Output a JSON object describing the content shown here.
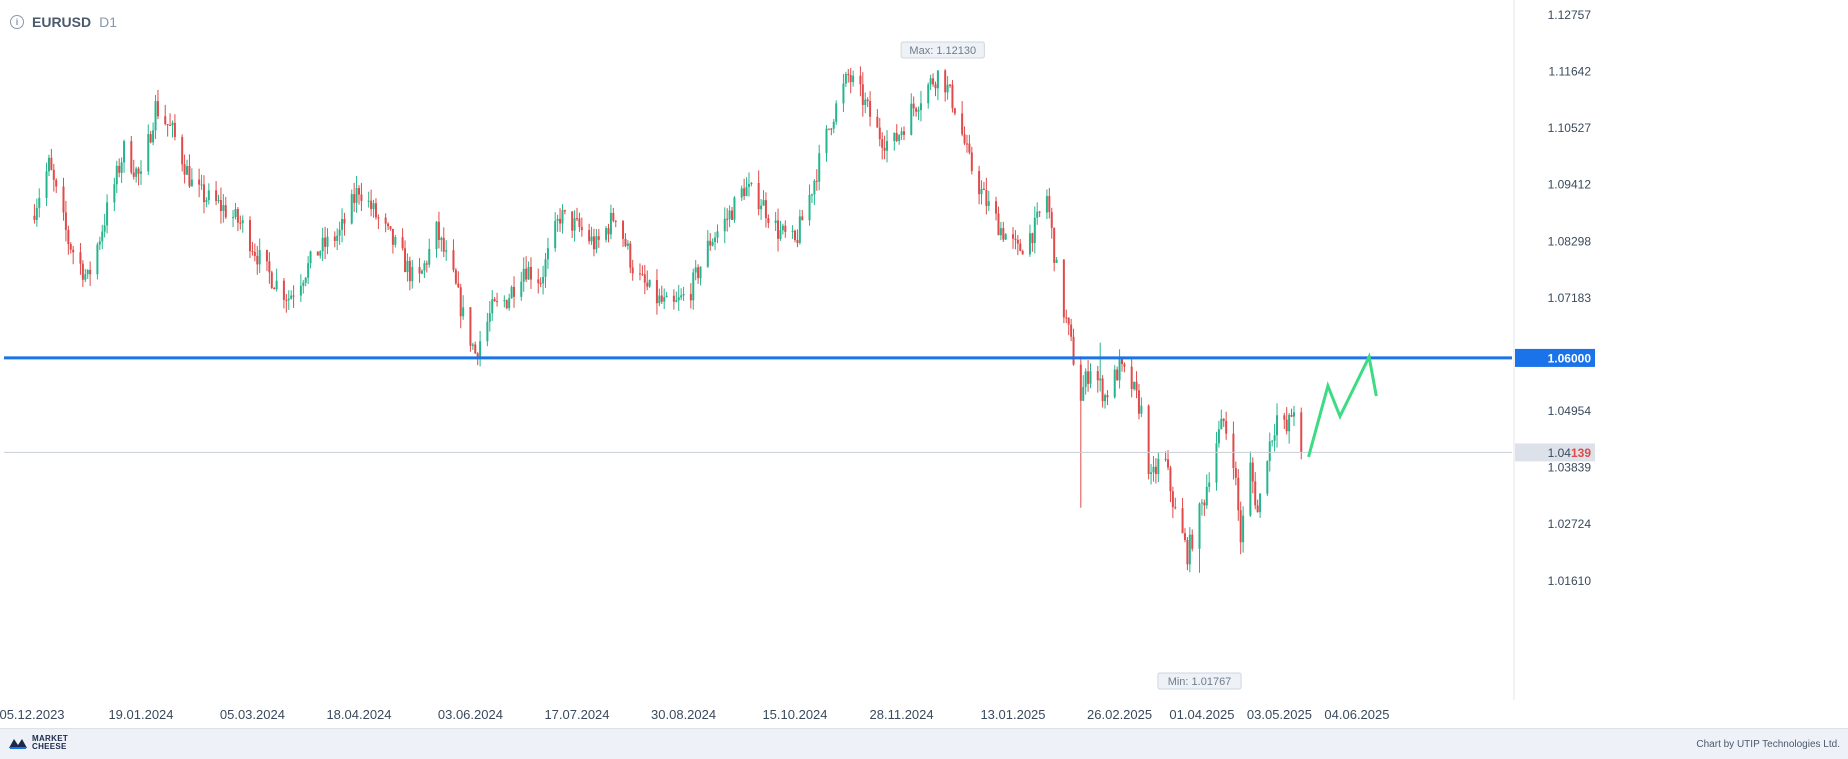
{
  "header": {
    "symbol": "EURUSD",
    "timeframe": "D1",
    "info_icon": "info-icon"
  },
  "footer": {
    "logo_line1": "MARKET",
    "logo_line2": "CHEESE",
    "credit": "Chart by UTIP Technologies Ltd."
  },
  "colors": {
    "up": "#26b48c",
    "down": "#e04a4a",
    "level": "#1a73e8",
    "forecast": "#3ddc84",
    "grid": "#e6e9ee"
  },
  "chart_data": {
    "type": "candlestick",
    "symbol": "EURUSD",
    "timeframe": "D1",
    "y_ticks": [
      "1.12757",
      "1.11642",
      "1.10527",
      "1.09412",
      "1.08298",
      "1.07183",
      "1.06000",
      "1.04954",
      "1.04139",
      "1.03839",
      "1.02724",
      "1.01610"
    ],
    "x_ticks": [
      "05.12.2023",
      "19.01.2024",
      "05.03.2024",
      "18.04.2024",
      "03.06.2024",
      "17.07.2024",
      "30.08.2024",
      "15.10.2024",
      "28.11.2024",
      "13.01.2025",
      "26.02.2025",
      "01.04.2025",
      "03.05.2025",
      "04.06.2025"
    ],
    "ylim": [
      1.0135,
      1.1305
    ],
    "max_label": "Max: 1.12130",
    "max_value": 1.1213,
    "min_label": "Min: 1.01767",
    "min_value": 1.01767,
    "level_label": "1.06000",
    "level_value": 1.06,
    "last_price": 1.04139,
    "last_price_prefix": "1.04",
    "last_price_suffix": "139",
    "anchors": [
      [
        "05.12.2023",
        1.088
      ],
      [
        "12.12.2023",
        1.098
      ],
      [
        "20.12.2023",
        1.083
      ],
      [
        "28.12.2023",
        1.0755
      ],
      [
        "05.01.2024",
        1.089
      ],
      [
        "12.01.2024",
        1.101
      ],
      [
        "19.01.2024",
        1.095
      ],
      [
        "25.01.2024",
        1.1095
      ],
      [
        "01.02.2024",
        1.1045
      ],
      [
        "10.02.2024",
        1.093
      ],
      [
        "22.02.2024",
        1.0895
      ],
      [
        "01.03.2024",
        1.086
      ],
      [
        "10.03.2024",
        1.0775
      ],
      [
        "20.03.2024",
        1.072
      ],
      [
        "01.04.2024",
        1.081
      ],
      [
        "10.04.2024",
        1.0845
      ],
      [
        "18.04.2024",
        1.0935
      ],
      [
        "25.04.2024",
        1.088
      ],
      [
        "05.05.2024",
        1.0805
      ],
      [
        "12.05.2024",
        1.074
      ],
      [
        "20.05.2024",
        1.085
      ],
      [
        "27.05.2024",
        1.0755
      ],
      [
        "01.06.2024",
        1.0665
      ],
      [
        "05.06.2024",
        1.061
      ],
      [
        "12.06.2024",
        1.0695
      ],
      [
        "18.06.2024",
        1.0715
      ],
      [
        "25.06.2024",
        1.078
      ],
      [
        "02.07.2024",
        1.0755
      ],
      [
        "10.07.2024",
        1.088
      ],
      [
        "18.07.2024",
        1.0855
      ],
      [
        "25.07.2024",
        1.082
      ],
      [
        "02.08.2024",
        1.0885
      ],
      [
        "10.08.2024",
        1.0765
      ],
      [
        "18.08.2024",
        1.072
      ],
      [
        "25.08.2024",
        1.0695
      ],
      [
        "02.09.2024",
        1.0735
      ],
      [
        "10.09.2024",
        1.083
      ],
      [
        "17.09.2024",
        1.0875
      ],
      [
        "24.09.2024",
        1.0935
      ],
      [
        "01.10.2024",
        1.091
      ],
      [
        "08.10.2024",
        1.085
      ],
      [
        "15.10.2024",
        1.0825
      ],
      [
        "22.10.2024",
        1.0935
      ],
      [
        "30.10.2024",
        1.107
      ],
      [
        "06.11.2024",
        1.1155
      ],
      [
        "12.11.2024",
        1.111
      ],
      [
        "18.11.2024",
        1.1045
      ],
      [
        "24.11.2024",
        1.1015
      ],
      [
        "01.12.2024",
        1.108
      ],
      [
        "08.12.2024",
        1.113
      ],
      [
        "14.12.2024",
        1.1165
      ],
      [
        "20.12.2024",
        1.1095
      ],
      [
        "26.12.2024",
        1.0985
      ],
      [
        "01.01.2025",
        1.0915
      ],
      [
        "08.01.2025",
        1.0855
      ],
      [
        "15.01.2025",
        1.081
      ],
      [
        "22.01.2025",
        1.0855
      ],
      [
        "27.01.2025",
        1.092
      ],
      [
        "01.02.2025",
        1.0735
      ],
      [
        "05.02.2025",
        1.065
      ],
      [
        "10.02.2025",
        1.0525
      ],
      [
        "14.02.2025",
        1.0585
      ],
      [
        "20.02.2025",
        1.0525
      ],
      [
        "26.02.2025",
        1.058
      ],
      [
        "03.03.2025",
        1.0545
      ],
      [
        "07.03.2025",
        1.0495
      ],
      [
        "11.03.2025",
        1.0355
      ],
      [
        "16.03.2025",
        1.0415
      ],
      [
        "21.03.2025",
        1.0295
      ],
      [
        "26.03.2025",
        1.0215
      ],
      [
        "29.03.2025",
        1.026
      ],
      [
        "02.04.2025",
        1.0325
      ],
      [
        "06.04.2025",
        1.0425
      ],
      [
        "10.04.2025",
        1.0475
      ],
      [
        "14.04.2025",
        1.0405
      ],
      [
        "17.04.2025",
        1.0245
      ],
      [
        "21.04.2025",
        1.0385
      ],
      [
        "24.04.2025",
        1.0295
      ],
      [
        "28.04.2025",
        1.0415
      ],
      [
        "02.05.2025",
        1.0485
      ],
      [
        "06.05.2025",
        1.0455
      ],
      [
        "09.05.2025",
        1.0505
      ],
      [
        "12.05.2025",
        1.0413
      ]
    ],
    "max_candle_date": "15.12.2024",
    "min_candle_date": "31.03.2025",
    "forecast_path": [
      [
        "15.05.2025",
        1.0405
      ],
      [
        "23.05.2025",
        1.0545
      ],
      [
        "28.05.2025",
        1.0485
      ],
      [
        "09.06.2025",
        1.0602
      ],
      [
        "12.06.2025",
        1.0525
      ]
    ]
  }
}
